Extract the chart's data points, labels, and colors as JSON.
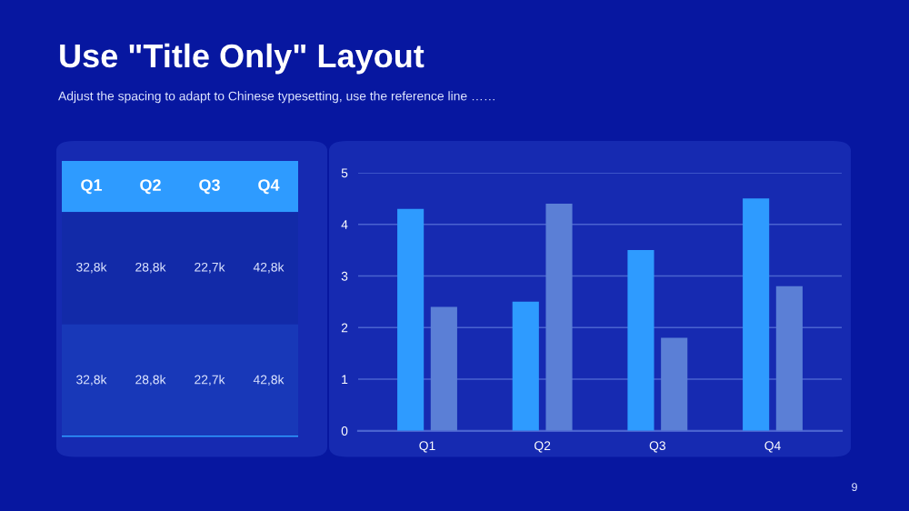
{
  "chart_data": [
    {
      "type": "other",
      "title": "Use \"Title Only\" Layout",
      "subtitle": "Adjust the spacing to adapt to Chinese typesetting, use the reference line ……",
      "categories": [
        "Q1",
        "Q2",
        "Q3",
        "Q4"
      ],
      "color": "#2e9bff",
      "cell_labels": [
        [
          "32,8k",
          "28,8k",
          "22,7k",
          "42,8k"
        ],
        [
          "32,8k",
          "28,8k",
          "22,7k",
          "42,8k"
        ]
      ],
      "annotations": [
        "9"
      ]
    },
    {
      "type": "bar",
      "categories": [
        "Q1",
        "Q2",
        "Q3",
        "Q4"
      ],
      "ylim": [
        0,
        5
      ],
      "yticks": [
        0,
        1,
        2,
        3,
        4,
        5
      ],
      "grid": "y",
      "series": [
        {
          "color": "#2e9bff",
          "values": [
            4.3,
            2.5,
            3.5,
            4.5
          ]
        },
        {
          "color": "#5b7fd6",
          "values": [
            2.4,
            4.4,
            1.8,
            2.8
          ]
        }
      ]
    }
  ]
}
